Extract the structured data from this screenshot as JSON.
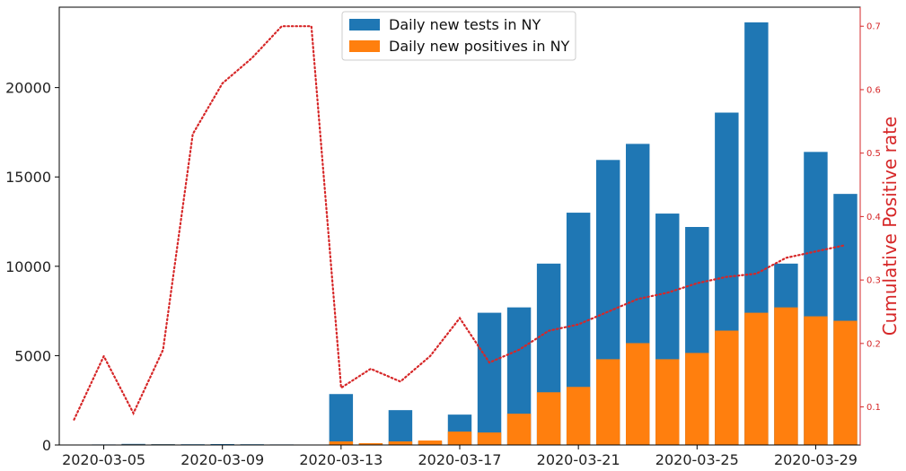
{
  "chart_data": {
    "type": "bar",
    "x": [
      "2020-03-04",
      "2020-03-05",
      "2020-03-06",
      "2020-03-07",
      "2020-03-08",
      "2020-03-09",
      "2020-03-10",
      "2020-03-11",
      "2020-03-12",
      "2020-03-13",
      "2020-03-14",
      "2020-03-15",
      "2020-03-16",
      "2020-03-17",
      "2020-03-18",
      "2020-03-19",
      "2020-03-20",
      "2020-03-21",
      "2020-03-22",
      "2020-03-23",
      "2020-03-24",
      "2020-03-25",
      "2020-03-26",
      "2020-03-27",
      "2020-03-28",
      "2020-03-29",
      "2020-03-30"
    ],
    "series": [
      {
        "name": "Daily new tests in NY",
        "type": "bar",
        "axis": "left",
        "color": "#1f77b4",
        "values": [
          null,
          30,
          60,
          45,
          40,
          50,
          40,
          30,
          null,
          2850,
          80,
          1950,
          200,
          1700,
          7400,
          7700,
          10150,
          13000,
          15950,
          16850,
          12950,
          12200,
          18600,
          23650,
          10150,
          16400,
          14050
        ]
      },
      {
        "name": "Daily new positives in NY",
        "type": "bar",
        "axis": "left",
        "color": "#ff7f0e",
        "values": [
          null,
          20,
          30,
          30,
          20,
          20,
          20,
          10,
          null,
          200,
          100,
          200,
          250,
          750,
          700,
          1750,
          2950,
          3250,
          4800,
          5700,
          4800,
          5150,
          6400,
          7400,
          7700,
          7200,
          6950
        ]
      },
      {
        "type": "line",
        "axis": "right",
        "style": "dotted",
        "color": "#d62728",
        "values": [
          0.08,
          0.18,
          0.09,
          0.19,
          0.53,
          0.61,
          0.65,
          0.7,
          0.7,
          0.13,
          0.16,
          0.14,
          0.18,
          0.24,
          0.17,
          0.19,
          0.22,
          0.23,
          0.25,
          0.27,
          0.28,
          0.295,
          0.305,
          0.31,
          0.335,
          0.345,
          0.355
        ]
      }
    ],
    "x_tick_labels": [
      "2020-03-05",
      "2020-03-09",
      "2020-03-13",
      "2020-03-17",
      "2020-03-21",
      "2020-03-25",
      "2020-03-29"
    ],
    "ylim_left": [
      0,
      24500
    ],
    "yticks_left": [
      "0",
      "5000",
      "10000",
      "15000",
      "20000"
    ],
    "ylim_right": [
      0.04,
      0.73
    ],
    "yticks_right": [
      "0.1",
      "0.2",
      "0.3",
      "0.4",
      "0.5",
      "0.6",
      "0.7"
    ],
    "ylabel_right": "Cumulative Positive rate",
    "right_axis_color": "#d62728",
    "legend": {
      "placement": "top-center",
      "entries": [
        "Daily new tests in NY",
        "Daily new positives in NY"
      ]
    },
    "grid": false
  }
}
